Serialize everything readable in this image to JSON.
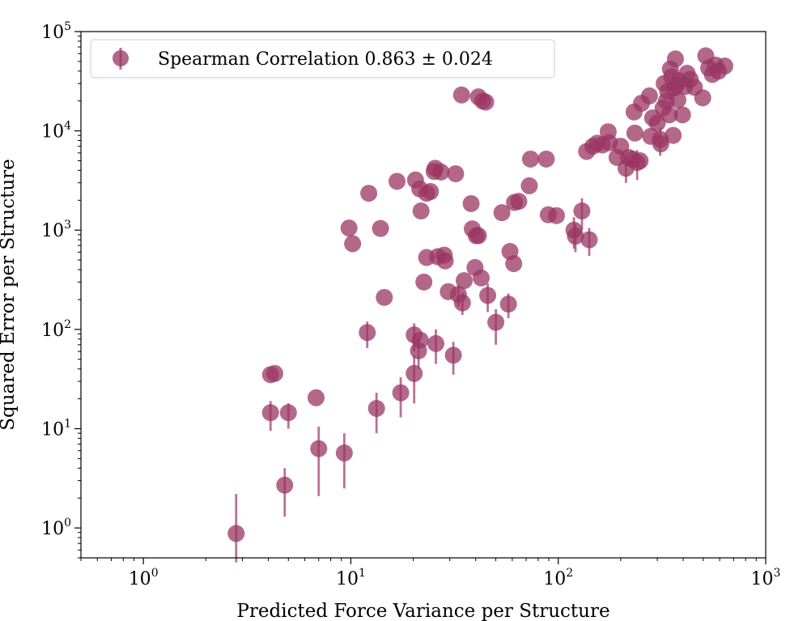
{
  "chart_data": {
    "type": "scatter",
    "title": "",
    "xlabel": "Predicted Force Variance per Structure",
    "ylabel": "Squared Error per Structure",
    "xscale": "log",
    "yscale": "log",
    "xlim": [
      0.5,
      1000
    ],
    "ylim": [
      0.5,
      100000
    ],
    "x_ticks": [
      {
        "base": "10",
        "exp": "0",
        "value": 1
      },
      {
        "base": "10",
        "exp": "1",
        "value": 10
      },
      {
        "base": "10",
        "exp": "2",
        "value": 100
      },
      {
        "base": "10",
        "exp": "3",
        "value": 1000
      }
    ],
    "y_ticks": [
      {
        "base": "10",
        "exp": "0",
        "value": 1
      },
      {
        "base": "10",
        "exp": "1",
        "value": 10
      },
      {
        "base": "10",
        "exp": "2",
        "value": 100
      },
      {
        "base": "10",
        "exp": "3",
        "value": 1000
      },
      {
        "base": "10",
        "exp": "4",
        "value": 10000
      },
      {
        "base": "10",
        "exp": "5",
        "value": 100000
      }
    ],
    "legend": {
      "label": "Spearman Correlation 0.863 ± 0.024",
      "position": "top-left"
    },
    "colors": {
      "marker": "#9a3663",
      "errorbar": "#9a3663"
    },
    "series": [
      {
        "name": "Spearman Correlation 0.863 ± 0.024",
        "points": [
          {
            "x": 2.8,
            "y": 0.88,
            "ylo": 0.45,
            "yhi": 2.2
          },
          {
            "x": 4.1,
            "y": 14.5,
            "ylo": 9.5,
            "yhi": 19
          },
          {
            "x": 4.1,
            "y": 35
          },
          {
            "x": 4.3,
            "y": 36
          },
          {
            "x": 4.8,
            "y": 2.7,
            "ylo": 1.3,
            "yhi": 4.0
          },
          {
            "x": 5.0,
            "y": 14.5,
            "ylo": 10,
            "yhi": 18
          },
          {
            "x": 6.8,
            "y": 20.5
          },
          {
            "x": 7.0,
            "y": 6.3,
            "ylo": 2.1,
            "yhi": 10.5
          },
          {
            "x": 9.3,
            "y": 5.7,
            "ylo": 2.5,
            "yhi": 9.0
          },
          {
            "x": 9.8,
            "y": 1050
          },
          {
            "x": 10.2,
            "y": 730
          },
          {
            "x": 12.0,
            "y": 93,
            "ylo": 65,
            "yhi": 120
          },
          {
            "x": 12.2,
            "y": 2350
          },
          {
            "x": 13.3,
            "y": 16,
            "ylo": 9,
            "yhi": 23
          },
          {
            "x": 13.9,
            "y": 1040
          },
          {
            "x": 14.5,
            "y": 210
          },
          {
            "x": 16.7,
            "y": 3100
          },
          {
            "x": 17.4,
            "y": 23,
            "ylo": 13,
            "yhi": 33
          },
          {
            "x": 20.2,
            "y": 36,
            "ylo": 18,
            "yhi": 55
          },
          {
            "x": 20.2,
            "y": 88,
            "ylo": 60,
            "yhi": 115
          },
          {
            "x": 20.5,
            "y": 3200
          },
          {
            "x": 21.2,
            "y": 61,
            "ylo": 40,
            "yhi": 82
          },
          {
            "x": 21.6,
            "y": 78
          },
          {
            "x": 21.5,
            "y": 2600
          },
          {
            "x": 21.8,
            "y": 1560
          },
          {
            "x": 22.5,
            "y": 300
          },
          {
            "x": 23.2,
            "y": 530
          },
          {
            "x": 23.2,
            "y": 2350
          },
          {
            "x": 24.2,
            "y": 2450
          },
          {
            "x": 25.2,
            "y": 3900
          },
          {
            "x": 25.5,
            "y": 4200
          },
          {
            "x": 25.7,
            "y": 72,
            "ylo": 45,
            "yhi": 100
          },
          {
            "x": 26.2,
            "y": 540
          },
          {
            "x": 27.2,
            "y": 3850
          },
          {
            "x": 28.2,
            "y": 560
          },
          {
            "x": 28.5,
            "y": 490
          },
          {
            "x": 29.5,
            "y": 240
          },
          {
            "x": 31.2,
            "y": 55,
            "ylo": 35,
            "yhi": 75
          },
          {
            "x": 32.0,
            "y": 3700
          },
          {
            "x": 33.0,
            "y": 225,
            "ylo": 170,
            "yhi": 280
          },
          {
            "x": 34.5,
            "y": 185,
            "ylo": 140,
            "yhi": 235
          },
          {
            "x": 34.2,
            "y": 23000
          },
          {
            "x": 35.2,
            "y": 310
          },
          {
            "x": 38.0,
            "y": 1850
          },
          {
            "x": 38.5,
            "y": 1030
          },
          {
            "x": 39.7,
            "y": 420
          },
          {
            "x": 40.2,
            "y": 880
          },
          {
            "x": 41.2,
            "y": 880
          },
          {
            "x": 41.2,
            "y": 22000
          },
          {
            "x": 42.5,
            "y": 330
          },
          {
            "x": 43.2,
            "y": 20000
          },
          {
            "x": 44.7,
            "y": 19500
          },
          {
            "x": 45.7,
            "y": 220,
            "ylo": 150,
            "yhi": 290
          },
          {
            "x": 50.0,
            "y": 118,
            "ylo": 70,
            "yhi": 160
          },
          {
            "x": 53.5,
            "y": 1500
          },
          {
            "x": 57.5,
            "y": 180,
            "ylo": 130,
            "yhi": 230
          },
          {
            "x": 58.5,
            "y": 610
          },
          {
            "x": 61.0,
            "y": 460
          },
          {
            "x": 61.5,
            "y": 1900
          },
          {
            "x": 64.5,
            "y": 1950
          },
          {
            "x": 72.5,
            "y": 2800
          },
          {
            "x": 73.5,
            "y": 5200
          },
          {
            "x": 87.5,
            "y": 5200
          },
          {
            "x": 89.5,
            "y": 1430
          },
          {
            "x": 98.0,
            "y": 1400
          },
          {
            "x": 119.0,
            "y": 1000,
            "ylo": 650,
            "yhi": 1350
          },
          {
            "x": 121.0,
            "y": 870,
            "ylo": 600,
            "yhi": 1150
          },
          {
            "x": 130.0,
            "y": 1560,
            "ylo": 1000,
            "yhi": 2100
          },
          {
            "x": 137.0,
            "y": 6200
          },
          {
            "x": 141.0,
            "y": 800,
            "ylo": 550,
            "yhi": 1050
          },
          {
            "x": 147.0,
            "y": 7000
          },
          {
            "x": 154.0,
            "y": 7500
          },
          {
            "x": 163.0,
            "y": 7200
          },
          {
            "x": 174.0,
            "y": 9800
          },
          {
            "x": 176.0,
            "y": 7600
          },
          {
            "x": 192.0,
            "y": 5400
          },
          {
            "x": 200.0,
            "y": 7000
          },
          {
            "x": 212.0,
            "y": 4200,
            "ylo": 3000,
            "yhi": 5400
          },
          {
            "x": 218.0,
            "y": 5400
          },
          {
            "x": 228.0,
            "y": 5200
          },
          {
            "x": 232.0,
            "y": 15500
          },
          {
            "x": 234.0,
            "y": 9500
          },
          {
            "x": 240.0,
            "y": 4800,
            "ylo": 3200,
            "yhi": 6400
          },
          {
            "x": 248.0,
            "y": 5000
          },
          {
            "x": 252.0,
            "y": 19000
          },
          {
            "x": 275.0,
            "y": 22500
          },
          {
            "x": 279.0,
            "y": 8800
          },
          {
            "x": 285.0,
            "y": 13500
          },
          {
            "x": 300.0,
            "y": 12000
          },
          {
            "x": 310.0,
            "y": 8200,
            "ylo": 5600,
            "yhi": 10800
          },
          {
            "x": 312.0,
            "y": 7400
          },
          {
            "x": 320.0,
            "y": 17000
          },
          {
            "x": 324.0,
            "y": 30000
          },
          {
            "x": 332.0,
            "y": 20000
          },
          {
            "x": 337.0,
            "y": 25000
          },
          {
            "x": 343.0,
            "y": 14500
          },
          {
            "x": 347.0,
            "y": 42000
          },
          {
            "x": 352.0,
            "y": 35000
          },
          {
            "x": 358.0,
            "y": 9000
          },
          {
            "x": 363.0,
            "y": 27000
          },
          {
            "x": 367.0,
            "y": 53000
          },
          {
            "x": 372.0,
            "y": 29000
          },
          {
            "x": 377.0,
            "y": 20500
          },
          {
            "x": 382.0,
            "y": 32000
          },
          {
            "x": 397.0,
            "y": 14500
          },
          {
            "x": 408.0,
            "y": 28000
          },
          {
            "x": 418.0,
            "y": 38000
          },
          {
            "x": 433.0,
            "y": 33000
          },
          {
            "x": 453.0,
            "y": 27500
          },
          {
            "x": 497.0,
            "y": 21500
          },
          {
            "x": 514.0,
            "y": 57000
          },
          {
            "x": 531.0,
            "y": 43000
          },
          {
            "x": 553.0,
            "y": 37000
          },
          {
            "x": 572.0,
            "y": 46000
          },
          {
            "x": 593.0,
            "y": 40000
          },
          {
            "x": 635.0,
            "y": 45000
          }
        ]
      }
    ]
  }
}
